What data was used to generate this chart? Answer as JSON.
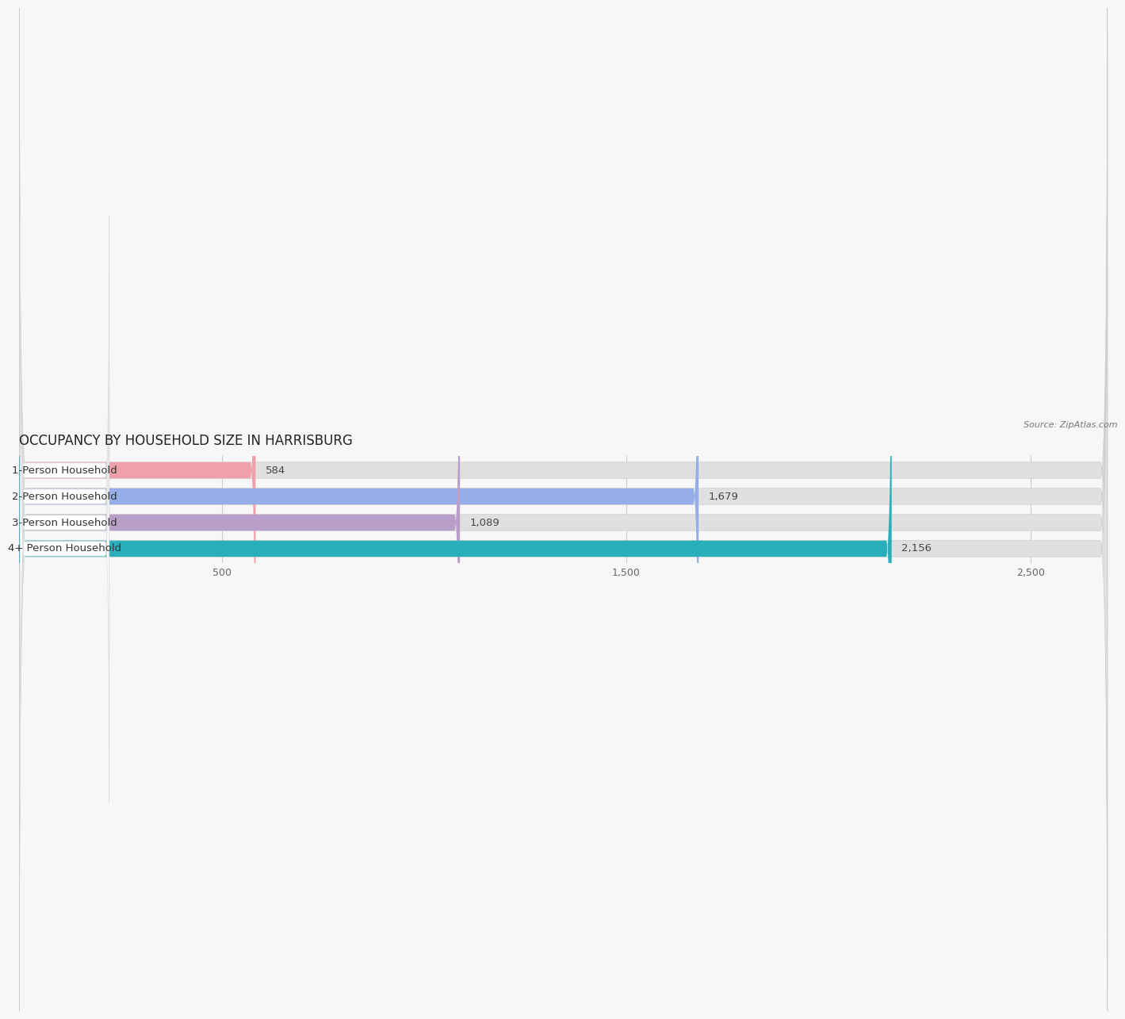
{
  "title": "OCCUPANCY BY HOUSEHOLD SIZE IN HARRISBURG",
  "source_text": "Source: ZipAtlas.com",
  "categories": [
    "1-Person Household",
    "2-Person Household",
    "3-Person Household",
    "4+ Person Household"
  ],
  "values": [
    584,
    1679,
    1089,
    2156
  ],
  "bar_colors": [
    "#f0a0aa",
    "#95aee8",
    "#b89ec8",
    "#29afba"
  ],
  "bar_bg_color": "#e0e0e0",
  "label_box_color": "#ffffff",
  "background_color": "#f7f7f7",
  "xlim_max": 2700,
  "xticks": [
    500,
    1500,
    2500
  ],
  "bar_height": 0.62,
  "label_fontsize": 9.5,
  "value_fontsize": 9.5,
  "title_fontsize": 12,
  "title_color": "#222222",
  "source_fontsize": 8,
  "tick_fontsize": 9
}
